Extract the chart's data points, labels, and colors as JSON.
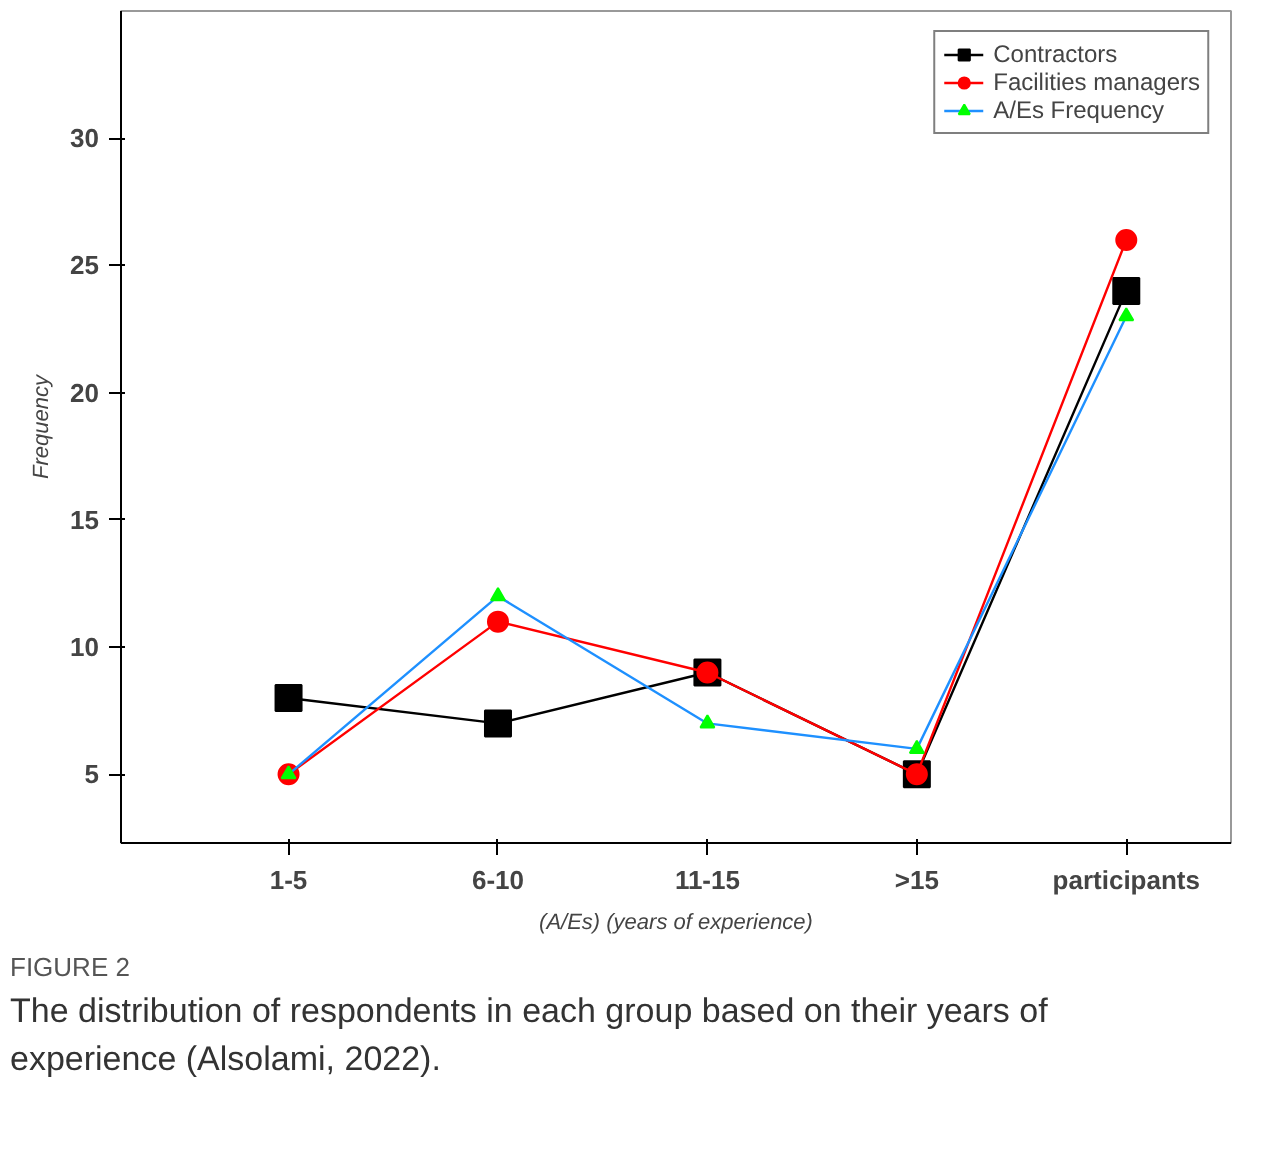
{
  "chart_data": {
    "type": "line",
    "xlabel": "(A/Es) (years of experience)",
    "ylabel": "Frequency",
    "categories": [
      "1-5",
      "6-10",
      "11-15",
      ">15",
      "participants"
    ],
    "ylim": [
      2.3,
      35
    ],
    "yticks": [
      5,
      10,
      15,
      20,
      25,
      30
    ],
    "grid": false,
    "legend": "top right",
    "series": [
      {
        "name": "Contractors",
        "color": "#000000",
        "marker": "square",
        "values": [
          8,
          7,
          9,
          5,
          24
        ]
      },
      {
        "name": "Facilities managers",
        "color": "#ff0000",
        "marker": "circle",
        "values": [
          5,
          11,
          9,
          5,
          26
        ]
      },
      {
        "name": "A/Es Frequency",
        "color": "#1e90ff",
        "marker": "triangle",
        "colors": [
          "#00ff00",
          "#00ff00",
          "#00ff00",
          "#00ff00",
          "#00ff00"
        ],
        "values": [
          5,
          12,
          7,
          6,
          23
        ]
      }
    ],
    "annotations": [
      "FIGURE 2",
      "The distribution of respondents in each group based on their years of experience (Alsolami, 2022)."
    ]
  }
}
